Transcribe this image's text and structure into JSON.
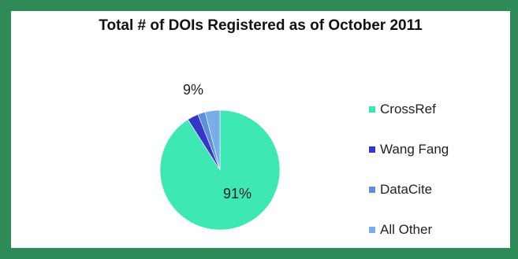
{
  "chart_data": {
    "type": "pie",
    "title": "Total #  of DOIs Registered as of October 2011",
    "categories": [
      "CrossRef",
      "Wang Fang",
      "DataCite",
      "All Other"
    ],
    "values": [
      91,
      3,
      2,
      4
    ],
    "colors": [
      "#3ee8b4",
      "#3535c8",
      "#5b8fd9",
      "#7aaee8"
    ],
    "data_labels": [
      {
        "text": "9%",
        "for": "Wang Fang + DataCite + All Other"
      },
      {
        "text": "91%",
        "for": "CrossRef"
      }
    ],
    "legend_position": "right"
  }
}
